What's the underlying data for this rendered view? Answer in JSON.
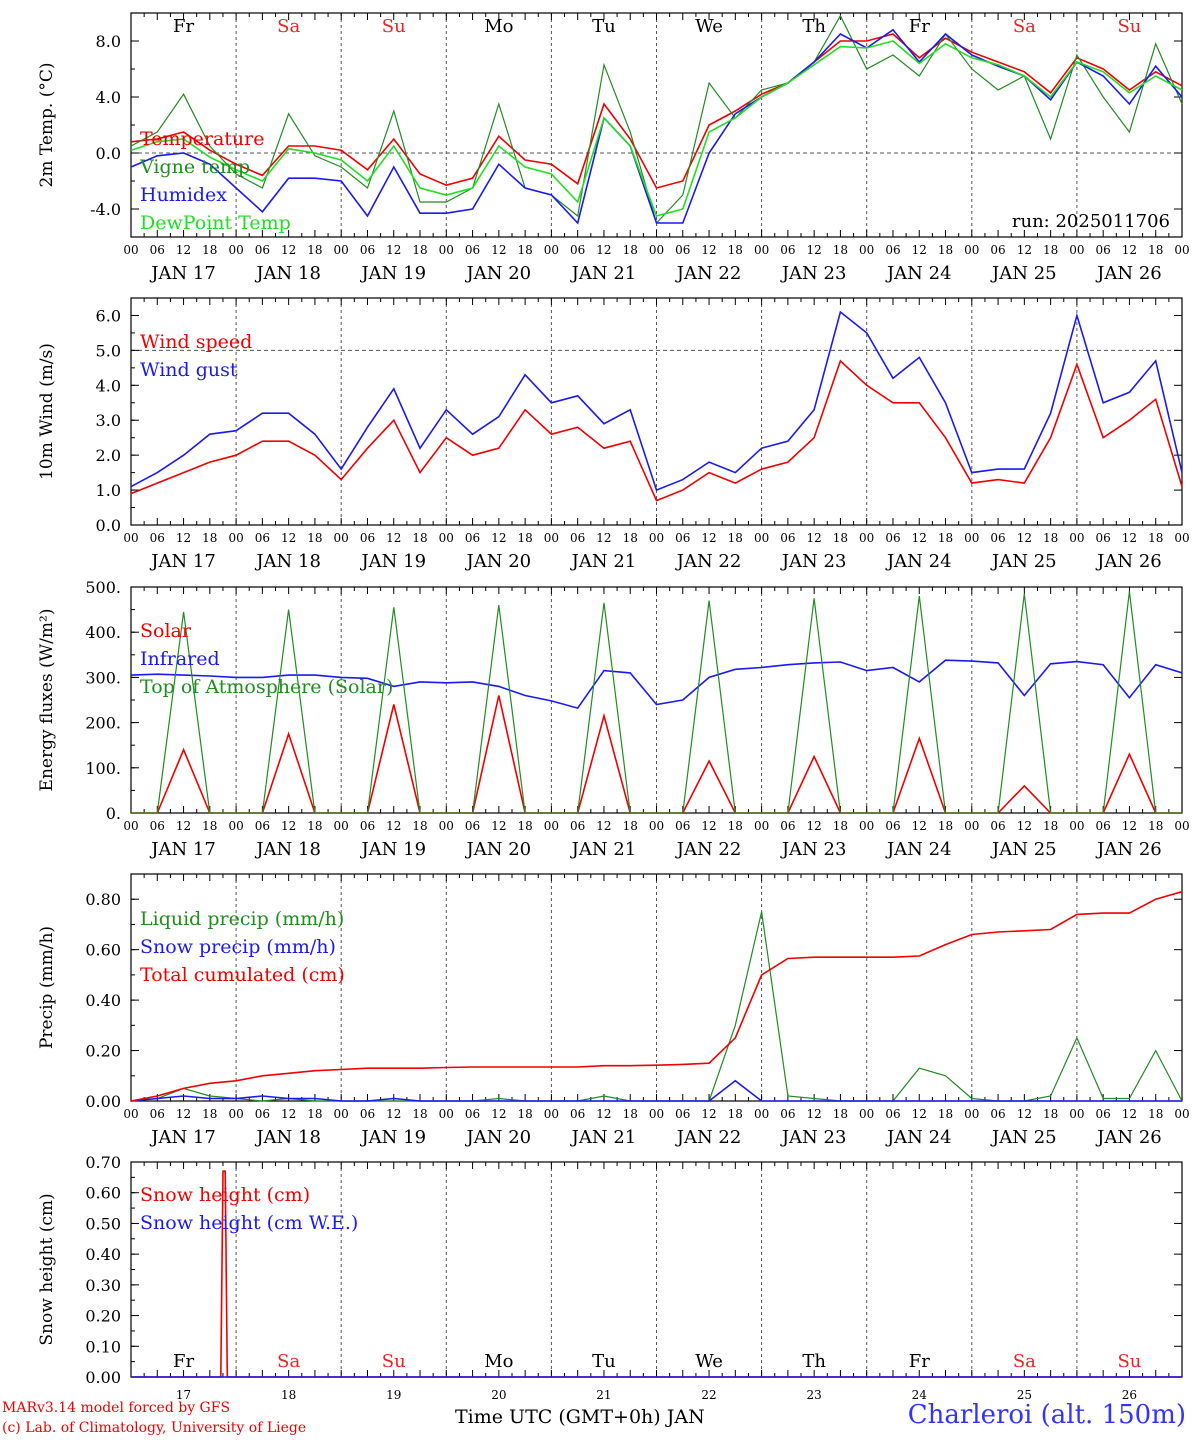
{
  "run_label": "run: 2025011706",
  "day_names": [
    "Fr",
    "Sa",
    "Su",
    "Mo",
    "Tu",
    "We",
    "Th",
    "Fr",
    "Sa",
    "Su"
  ],
  "weekend_days": [
    "Sa",
    "Su"
  ],
  "date_labels": [
    "JAN 17",
    "JAN 18",
    "JAN 19",
    "JAN 20",
    "JAN 21",
    "JAN 22",
    "JAN 23",
    "JAN 24",
    "JAN 25",
    "JAN 26"
  ],
  "bottom_day_numbers": [
    "17",
    "18",
    "19",
    "20",
    "21",
    "22",
    "23",
    "24",
    "25",
    "26"
  ],
  "hour_tick_labels": [
    "00",
    "06",
    "12",
    "18"
  ],
  "footer": {
    "credit_line1": "MARv3.14 model forced by GFS",
    "credit_line2": "(c) Lab. of Climatology, University of Liege",
    "x_axis_title": "Time UTC (GMT+0h) JAN",
    "station": "Charleroi (alt. 150m)"
  },
  "colors": {
    "red": "#ee0000",
    "dark_green": "#228b22",
    "blue": "#1a1aee",
    "light_green": "#22dd22",
    "weekend_label": "#ee2222",
    "station": "#3333ff"
  },
  "chart_data": [
    {
      "id": "temp",
      "type": "line",
      "ylabel": "2m Temp. (°C)",
      "ylim": [
        -6.0,
        10.0
      ],
      "yticks": [
        "-4.0",
        "0.0",
        "4.0",
        "8.0"
      ],
      "ytick_values": [
        -4,
        0,
        4,
        8
      ],
      "ref_line": 0,
      "legend_position": "top-left",
      "x_hours": [
        0,
        6,
        12,
        18,
        24,
        30,
        36,
        42,
        48,
        54,
        60,
        66,
        72,
        78,
        84,
        90,
        96,
        102,
        108,
        114,
        120,
        126,
        132,
        138,
        144,
        150,
        156,
        162,
        168,
        174,
        180,
        186,
        192,
        198,
        204,
        210,
        216,
        222,
        228,
        234,
        240
      ],
      "series": [
        {
          "name": "Temperature",
          "color": "red",
          "values": [
            0.8,
            1.0,
            1.5,
            0.2,
            -0.8,
            -1.6,
            0.5,
            0.5,
            0.2,
            -1.2,
            1.0,
            -1.5,
            -2.3,
            -1.8,
            1.2,
            -0.5,
            -0.8,
            -2.2,
            3.5,
            1.0,
            -2.5,
            -2.0,
            2.0,
            3.0,
            4.2,
            5.0,
            6.5,
            8.0,
            8.0,
            8.5,
            6.8,
            8.2,
            7.2,
            6.5,
            5.8,
            4.3,
            6.8,
            6.0,
            4.5,
            5.8,
            4.8
          ]
        },
        {
          "name": "Vigne temp",
          "color": "dark_green",
          "values": [
            0.5,
            1.5,
            4.2,
            0.5,
            -1.5,
            -2.5,
            2.8,
            -0.2,
            -1.0,
            -2.5,
            3.0,
            -3.5,
            -3.5,
            -2.5,
            3.5,
            -2.5,
            -3.0,
            -4.5,
            6.3,
            1.5,
            -5.0,
            -3.0,
            5.0,
            2.5,
            4.5,
            5.0,
            6.5,
            9.8,
            6.0,
            7.0,
            5.5,
            8.5,
            6.0,
            4.5,
            5.5,
            1.0,
            7.0,
            4.0,
            1.5,
            7.8,
            3.5
          ]
        },
        {
          "name": "Humidex",
          "color": "blue",
          "values": [
            -1.0,
            -0.2,
            0.0,
            -0.8,
            -2.5,
            -4.2,
            -1.8,
            -1.8,
            -2.0,
            -4.5,
            -1.0,
            -4.3,
            -4.3,
            -4.0,
            -0.8,
            -2.5,
            -3.0,
            -5.0,
            2.5,
            0.5,
            -5.0,
            -5.0,
            0.0,
            2.8,
            4.0,
            5.0,
            6.5,
            8.5,
            7.5,
            8.8,
            6.5,
            8.5,
            7.0,
            6.2,
            5.5,
            3.8,
            6.5,
            5.5,
            3.5,
            6.2,
            4.0
          ]
        },
        {
          "name": "DewPoint Temp",
          "color": "light_green",
          "values": [
            0.2,
            0.8,
            1.0,
            -0.3,
            -1.2,
            -2.0,
            0.3,
            0.0,
            -0.5,
            -2.0,
            0.5,
            -2.5,
            -3.0,
            -2.5,
            0.5,
            -1.0,
            -1.5,
            -3.5,
            2.5,
            0.5,
            -4.5,
            -4.0,
            1.5,
            2.5,
            4.0,
            5.0,
            6.3,
            7.6,
            7.5,
            8.0,
            6.4,
            7.8,
            6.8,
            6.3,
            5.5,
            4.0,
            6.5,
            5.8,
            4.3,
            5.5,
            4.5
          ]
        }
      ]
    },
    {
      "id": "wind",
      "type": "line",
      "ylabel": "10m Wind (m/s)",
      "ylim": [
        0,
        6.5
      ],
      "yticks": [
        "0.0",
        "1.0",
        "2.0",
        "3.0",
        "4.0",
        "5.0",
        "6.0"
      ],
      "ytick_values": [
        0,
        1,
        2,
        3,
        4,
        5,
        6
      ],
      "ref_line": 5,
      "legend_position": "top-left",
      "x_hours": [
        0,
        6,
        12,
        18,
        24,
        30,
        36,
        42,
        48,
        54,
        60,
        66,
        72,
        78,
        84,
        90,
        96,
        102,
        108,
        114,
        120,
        126,
        132,
        138,
        144,
        150,
        156,
        162,
        168,
        174,
        180,
        186,
        192,
        198,
        204,
        210,
        216,
        222,
        228,
        234,
        240
      ],
      "series": [
        {
          "name": "Wind speed",
          "color": "red",
          "values": [
            0.9,
            1.2,
            1.5,
            1.8,
            2.0,
            2.4,
            2.4,
            2.0,
            1.3,
            2.2,
            3.0,
            1.5,
            2.5,
            2.0,
            2.2,
            3.3,
            2.6,
            2.8,
            2.2,
            2.4,
            0.7,
            1.0,
            1.5,
            1.2,
            1.6,
            1.8,
            2.5,
            4.7,
            4.0,
            3.5,
            3.5,
            2.5,
            1.2,
            1.3,
            1.2,
            2.5,
            4.6,
            2.5,
            3.0,
            3.6,
            1.1
          ]
        },
        {
          "name": "Wind gust",
          "color": "blue",
          "values": [
            1.1,
            1.5,
            2.0,
            2.6,
            2.7,
            3.2,
            3.2,
            2.6,
            1.6,
            2.8,
            3.9,
            2.2,
            3.3,
            2.6,
            3.1,
            4.3,
            3.5,
            3.7,
            2.9,
            3.3,
            1.0,
            1.3,
            1.8,
            1.5,
            2.2,
            2.4,
            3.3,
            6.1,
            5.5,
            4.2,
            4.8,
            3.5,
            1.5,
            1.6,
            1.6,
            3.2,
            6.0,
            3.5,
            3.8,
            4.7,
            1.5
          ]
        }
      ]
    },
    {
      "id": "energy",
      "type": "line",
      "ylabel": "Energy fluxes (W/m²)",
      "ylim": [
        0,
        500
      ],
      "yticks": [
        "0.",
        "100.",
        "200.",
        "300.",
        "400.",
        "500."
      ],
      "ytick_values": [
        0,
        100,
        200,
        300,
        400,
        500
      ],
      "legend_position": "top-left",
      "x_hours": [
        0,
        6,
        12,
        18,
        24,
        30,
        36,
        42,
        48,
        54,
        60,
        66,
        72,
        78,
        84,
        90,
        96,
        102,
        108,
        114,
        120,
        126,
        132,
        138,
        144,
        150,
        156,
        162,
        168,
        174,
        180,
        186,
        192,
        198,
        204,
        210,
        216,
        222,
        228,
        234,
        240
      ],
      "series": [
        {
          "name": "Solar",
          "color": "red",
          "values": [
            0,
            0,
            140,
            0,
            0,
            0,
            175,
            0,
            0,
            0,
            240,
            0,
            0,
            0,
            260,
            0,
            0,
            0,
            215,
            0,
            0,
            0,
            115,
            0,
            0,
            0,
            125,
            0,
            0,
            0,
            165,
            0,
            0,
            0,
            60,
            0,
            0,
            0,
            130,
            0,
            0
          ]
        },
        {
          "name": "Infrared",
          "color": "blue",
          "values": [
            305,
            307,
            305,
            303,
            300,
            300,
            305,
            305,
            300,
            298,
            280,
            290,
            288,
            290,
            280,
            260,
            248,
            232,
            315,
            310,
            240,
            250,
            300,
            318,
            322,
            328,
            332,
            334,
            315,
            322,
            290,
            338,
            336,
            332,
            260,
            330,
            335,
            328,
            255,
            328,
            310
          ]
        },
        {
          "name": "Top of Atmosphere (Solar)",
          "color": "dark_green",
          "values": [
            0,
            0,
            445,
            0,
            0,
            0,
            450,
            0,
            0,
            0,
            455,
            0,
            0,
            0,
            460,
            0,
            0,
            0,
            465,
            0,
            0,
            0,
            470,
            0,
            0,
            0,
            475,
            0,
            0,
            0,
            480,
            0,
            0,
            0,
            485,
            0,
            0,
            0,
            490,
            0,
            0
          ]
        }
      ]
    },
    {
      "id": "precip",
      "type": "line",
      "ylabel": "Precip (mm/h)",
      "ylim": [
        0,
        0.9
      ],
      "yticks": [
        "0.00",
        "0.20",
        "0.40",
        "0.60",
        "0.80"
      ],
      "ytick_values": [
        0,
        0.2,
        0.4,
        0.6,
        0.8
      ],
      "legend_position": "top-left",
      "x_hours": [
        0,
        6,
        12,
        18,
        24,
        30,
        36,
        42,
        48,
        54,
        60,
        66,
        72,
        78,
        84,
        90,
        96,
        102,
        108,
        114,
        120,
        126,
        132,
        138,
        144,
        150,
        156,
        162,
        168,
        174,
        180,
        186,
        192,
        198,
        204,
        210,
        216,
        222,
        228,
        234,
        240
      ],
      "series": [
        {
          "name": "Liquid precip (mm/h)",
          "color": "dark_green",
          "values": [
            0,
            0.01,
            0.05,
            0.02,
            0.01,
            0,
            0.01,
            0,
            0,
            0,
            0,
            0,
            0,
            0,
            0.01,
            0,
            0,
            0,
            0.02,
            0,
            0,
            0,
            0,
            0.3,
            0.75,
            0.02,
            0.01,
            0,
            0,
            0,
            0.13,
            0.1,
            0.01,
            0,
            0,
            0.02,
            0.25,
            0.01,
            0.01,
            0.2,
            0
          ]
        },
        {
          "name": "Snow precip (mm/h)",
          "color": "blue",
          "values": [
            0,
            0.01,
            0.02,
            0.01,
            0.01,
            0.02,
            0.01,
            0.01,
            0,
            0,
            0.01,
            0,
            0,
            0,
            0,
            0,
            0,
            0,
            0,
            0,
            0,
            0,
            0,
            0.08,
            0,
            0,
            0,
            0,
            0,
            0,
            0,
            0,
            0,
            0,
            0,
            0,
            0,
            0,
            0,
            0,
            0
          ]
        },
        {
          "name": "Total cumulated (cm)",
          "color": "red",
          "values": [
            0,
            0.02,
            0.05,
            0.07,
            0.08,
            0.1,
            0.11,
            0.12,
            0.125,
            0.13,
            0.13,
            0.13,
            0.133,
            0.135,
            0.135,
            0.135,
            0.135,
            0.135,
            0.14,
            0.14,
            0.142,
            0.145,
            0.15,
            0.25,
            0.5,
            0.565,
            0.57,
            0.57,
            0.57,
            0.57,
            0.575,
            0.62,
            0.66,
            0.67,
            0.675,
            0.68,
            0.74,
            0.745,
            0.745,
            0.8,
            0.83
          ]
        }
      ]
    },
    {
      "id": "snow",
      "type": "line",
      "ylabel": "Snow height (cm)",
      "ylim": [
        0,
        0.7
      ],
      "yticks": [
        "0.00",
        "0.10",
        "0.20",
        "0.30",
        "0.40",
        "0.50",
        "0.60",
        "0.70"
      ],
      "ytick_values": [
        0,
        0.1,
        0.2,
        0.3,
        0.4,
        0.5,
        0.6,
        0.7
      ],
      "legend_position": "top-left",
      "x_hours": [
        0,
        20.5,
        21.0,
        21.5,
        22.0,
        240
      ],
      "series": [
        {
          "name": "Snow height (cm)",
          "color": "red",
          "values": [
            0,
            0,
            0.67,
            0.67,
            0,
            0
          ]
        },
        {
          "name": "Snow height (cm W.E.)",
          "color": "blue",
          "values": [
            0,
            0,
            0,
            0,
            0,
            0
          ]
        }
      ]
    }
  ]
}
